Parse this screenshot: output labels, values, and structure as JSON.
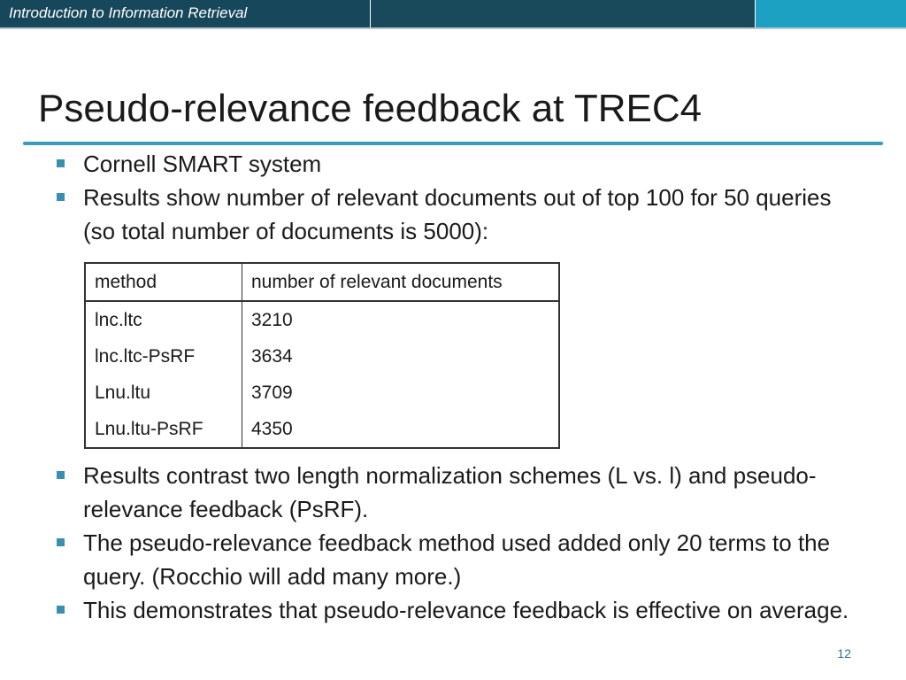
{
  "header": {
    "course_title": "Introduction to Information Retrieval",
    "colors": {
      "bar": "#17475a",
      "accent": "#1ca1c3",
      "rule": "#3a9bbd"
    }
  },
  "slide": {
    "title": "Pseudo-relevance feedback at TREC4",
    "bullets_top": [
      "Cornell SMART system",
      "Results show number of relevant documents out of top 100 for 50 queries (so total number of documents is 5000):"
    ],
    "table": {
      "headers": [
        "method",
        "number of relevant documents"
      ],
      "rows": [
        [
          "lnc.ltc",
          "3210"
        ],
        [
          "lnc.ltc-PsRF",
          "3634"
        ],
        [
          "Lnu.ltu",
          "3709"
        ],
        [
          "Lnu.ltu-PsRF",
          "4350"
        ]
      ]
    },
    "bullets_bottom": [
      "Results contrast two length normalization schemes (L vs. l) and pseudo-relevance feedback (PsRF).",
      "The pseudo-relevance feedback method used added only 20 terms to the query. (Rocchio will add many more.)",
      "This demonstrates that pseudo-relevance feedback is effective on average."
    ],
    "page_number": "12"
  }
}
